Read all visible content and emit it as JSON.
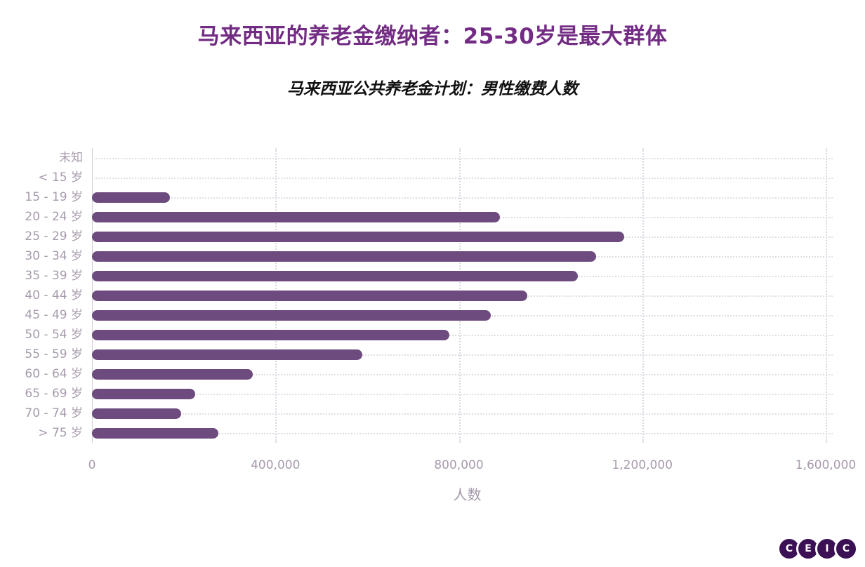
{
  "chart_data": {
    "type": "bar",
    "orientation": "horizontal",
    "title": "马来西亚的养老金缴纳者：25-30岁是最大群体",
    "subtitle": "马来西亚公共养老金计划：男性缴费人数",
    "categories": [
      "未知",
      "< 15 岁",
      "15 - 19 岁",
      "20 - 24 岁",
      "25 - 29 岁",
      "30 - 34 岁",
      "35 - 39 岁",
      "40 - 44 岁",
      "45 - 49 岁",
      "50 - 54 岁",
      "55 - 59 岁",
      "60 - 64 岁",
      "65 - 69 岁",
      "70 - 74 岁",
      "> 75 岁"
    ],
    "values": [
      0,
      0,
      170000,
      890000,
      1160000,
      1100000,
      1060000,
      950000,
      870000,
      780000,
      590000,
      350000,
      225000,
      195000,
      275000
    ],
    "xlabel": "人数",
    "ylabel": "",
    "xlim": [
      0,
      1600000
    ],
    "xticks": [
      0,
      400000,
      800000,
      1200000,
      1600000
    ],
    "xtick_labels": [
      "0",
      "400,000",
      "800,000",
      "1,200,000",
      "1,600,000"
    ],
    "grid": "vertical-dotted-and-row-dotted",
    "legend": "none",
    "bar_color": "#6d4b7e"
  },
  "colors": {
    "title": "#732c84",
    "axis_text": "#a79bac",
    "bar": "#6d4b7e",
    "logo_circle": "#3b1054"
  },
  "logo": {
    "name": "CEIC",
    "letters": [
      "C",
      "E",
      "I",
      "C"
    ]
  }
}
